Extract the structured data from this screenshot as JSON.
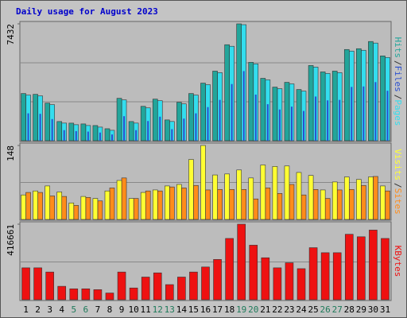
{
  "chart_data": {
    "type": "bar",
    "title": "Daily usage for August 2023",
    "categories": [
      "1",
      "2",
      "3",
      "4",
      "5",
      "6",
      "7",
      "8",
      "9",
      "10",
      "11",
      "12",
      "13",
      "14",
      "15",
      "16",
      "17",
      "18",
      "19",
      "20",
      "21",
      "22",
      "23",
      "24",
      "25",
      "26",
      "27",
      "28",
      "29",
      "30",
      "31"
    ],
    "category_colors": [
      "#000000",
      "#000000",
      "#000000",
      "#000000",
      "#1e7a5a",
      "#1e7a5a",
      "#000000",
      "#000000",
      "#000000",
      "#000000",
      "#000000",
      "#1e7a5a",
      "#1e7a5a",
      "#000000",
      "#000000",
      "#000000",
      "#000000",
      "#000000",
      "#1e7a5a",
      "#1e7a5a",
      "#000000",
      "#000000",
      "#000000",
      "#000000",
      "#000000",
      "#1e7a5a",
      "#1e7a5a",
      "#000000",
      "#000000",
      "#000000",
      "#000000"
    ],
    "legend_separator": "/",
    "panels": [
      {
        "ylim": [
          0,
          7432
        ],
        "yticks": [
          7432
        ],
        "grid_lines": 2,
        "series": [
          {
            "name": "Pages",
            "color": "#33ddee",
            "values": [
              2901,
              2850,
              2291,
              1120,
              1018,
              967,
              865,
              662,
              2596,
              1120,
              2087,
              2545,
              1222,
              2341,
              2901,
              3563,
              4327,
              6006,
              7380,
              4886,
              3868,
              3309,
              3614,
              3156,
              4683,
              4276,
              4327,
              5701,
              5752,
              6210,
              5294
            ]
          },
          {
            "name": "Files",
            "color": "#2a4fd0",
            "values": [
              1741,
              1710,
              1375,
              672,
              611,
              580,
              519,
              397,
              1558,
              672,
              1252,
              1527,
              733,
              1405,
              1741,
              2138,
              2596,
              3604,
              4428,
              2932,
              2321,
              1985,
              2168,
              1894,
              2810,
              2566,
              2596,
              3421,
              3451,
              3726,
              3176
            ]
          },
          {
            "name": "Hits",
            "color": "#22a59a",
            "values": [
              3001,
              2950,
              2391,
              1220,
              1118,
              1067,
              965,
              762,
              2696,
              1220,
              2187,
              2645,
              1322,
              2441,
              3001,
              3663,
              4427,
              6106,
              7432,
              4986,
              3968,
              3409,
              3714,
              3256,
              4783,
              4376,
              4427,
              5801,
              5852,
              6310,
              5394
            ]
          }
        ]
      },
      {
        "ylim": [
          0,
          148
        ],
        "yticks": [
          148
        ],
        "grid_lines": 1,
        "series": [
          {
            "name": "Sites",
            "color": "#ff8c1a",
            "values": [
              54,
              54,
              47,
              46,
              28,
              44,
              37,
              63,
              83,
              42,
              57,
              57,
              65,
              63,
              68,
              59,
              60,
              60,
              60,
              41,
              63,
              52,
              70,
              49,
              60,
              42,
              59,
              60,
              68,
              86,
              57
            ]
          },
          {
            "name": "Visits",
            "color": "#ffff33",
            "values": [
              49,
              57,
              67,
              55,
              33,
              46,
              42,
              57,
              78,
              42,
              54,
              59,
              67,
              70,
              120,
              148,
              89,
              91,
              99,
              83,
              109,
              106,
              107,
              94,
              88,
              59,
              75,
              85,
              80,
              85,
              67
            ]
          }
        ]
      },
      {
        "ylim": [
          0,
          416661
        ],
        "yticks": [
          416661
        ],
        "grid_lines": 1,
        "series": [
          {
            "name": "KBytes",
            "color": "#ee1111",
            "values": [
              175940,
              175940,
              152790,
              74080,
              60190,
              60190,
              55560,
              37040,
              152790,
              64820,
              125010,
              148160,
              83340,
              125010,
              152790,
              180570,
              222240,
              337990,
              416661,
              300950,
              231500,
              175940,
              203720,
              171310,
              287060,
              259280,
              259280,
              361140,
              347250,
              384290,
              337990
            ]
          }
        ]
      }
    ]
  }
}
